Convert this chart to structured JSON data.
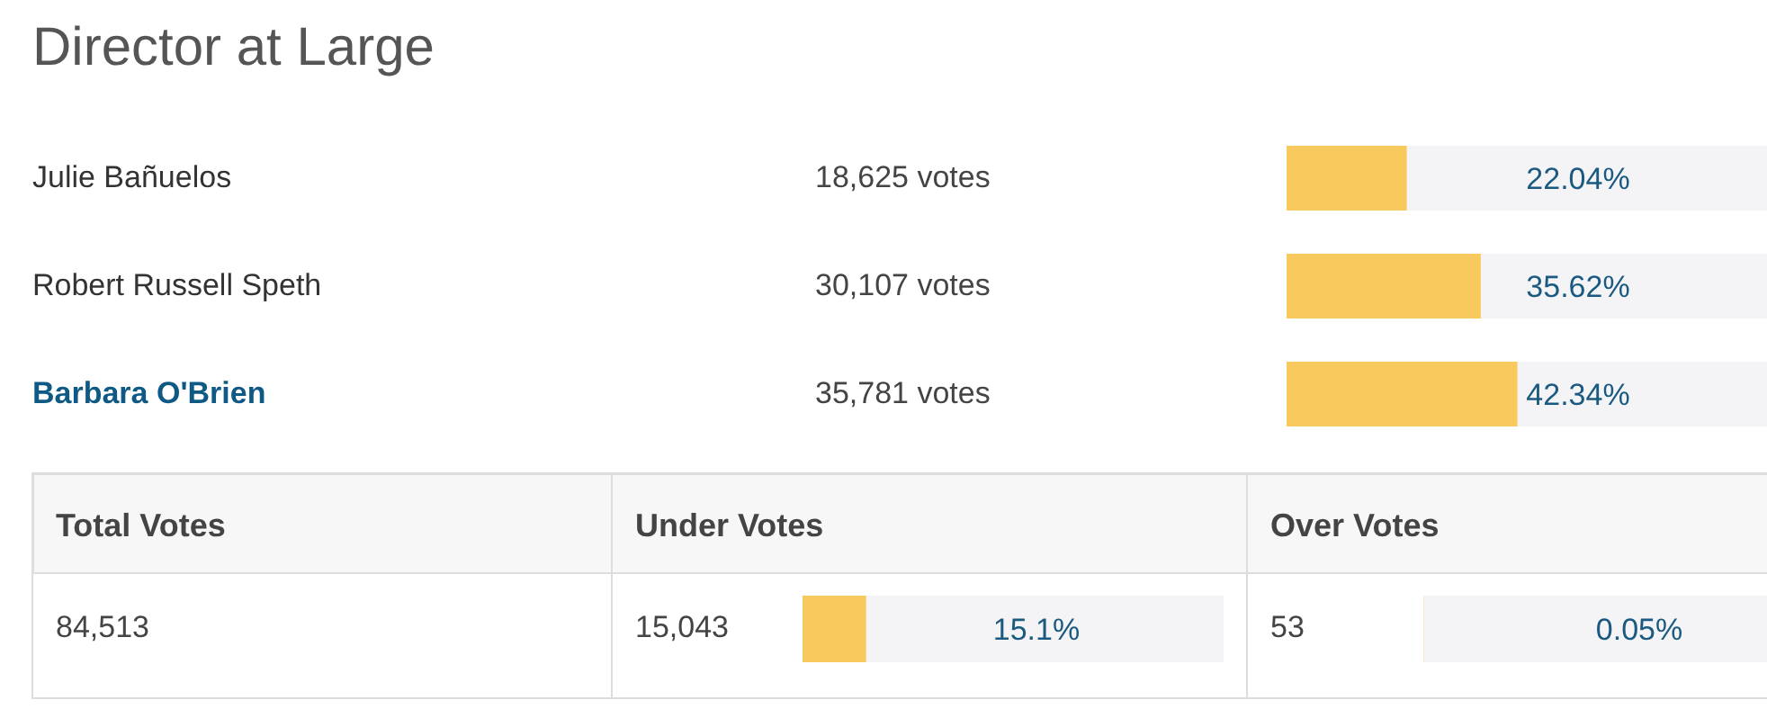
{
  "chart_data": [
    {
      "type": "bar",
      "orientation": "horizontal",
      "title": "Director at Large",
      "categories": [
        "Julie Bañuelos",
        "Robert Russell Speth",
        "Barbara O'Brien"
      ],
      "values": [
        22.04,
        35.62,
        42.34
      ],
      "value_labels": [
        "22.04%",
        "35.62%",
        "42.34%"
      ],
      "color": "#f8c95c",
      "xlim": [
        0,
        100
      ],
      "annotations": [
        "18,625 votes",
        "30,107 votes",
        "35,781 votes"
      ]
    },
    {
      "type": "other",
      "categories": [
        "Under Votes",
        "Over Votes"
      ],
      "values": [
        15.1,
        0.05
      ],
      "value_labels": [
        "15.1%",
        "0.05%"
      ],
      "annotations": [
        "Total Votes",
        "84,513",
        "15,043",
        "53"
      ]
    }
  ]
}
